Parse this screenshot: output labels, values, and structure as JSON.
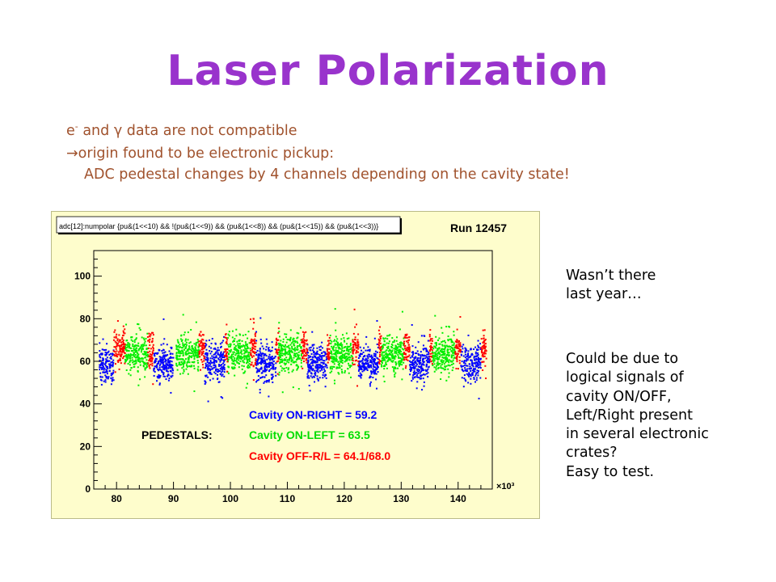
{
  "slide": {
    "title": "Laser Polarization",
    "intro": {
      "line1_electron": "e",
      "line1_electron_sup": "-",
      "line1_and": " and ",
      "line1_gamma": "γ",
      "line1_rest": " data are not compatible",
      "line2_arrow": "→",
      "line2_text": "origin found to be electronic pickup:",
      "line3": "ADC pedestal changes by 4 channels depending on the cavity state!"
    },
    "side_note_1": [
      "Wasn’t there",
      "last year…"
    ],
    "side_note_2": [
      "Could be due to",
      "logical signals of",
      "cavity ON/OFF,",
      "Left/Right present",
      "in several electronic",
      "crates?",
      "Easy to test."
    ]
  },
  "colors": {
    "title": "#9933cc",
    "intro_text": "#a0522d",
    "frame_bg": "#fefdcc",
    "red_series": "#ff0000",
    "green_series": "#00ee00",
    "blue_series": "#0000ff"
  },
  "chart_data": {
    "type": "scatter",
    "title": "adc[12]:numpolar {pu&(1<<10) && !(pu&(1<<9)) && (pu&(1<<8)) &&  (pu&(1<<15)) && (pu&(1<<3))}",
    "run_label": "Run 12457",
    "x_multiplier": "×10³",
    "xlim": [
      76,
      146
    ],
    "ylim": [
      0,
      112
    ],
    "x_ticks": [
      80,
      90,
      100,
      110,
      120,
      130,
      140
    ],
    "y_ticks": [
      0,
      20,
      40,
      60,
      80,
      100
    ],
    "legend_heading": "PEDESTALS:",
    "legend": [
      {
        "text": "Cavity ON-RIGHT = 59.2",
        "color": "#0000ff"
      },
      {
        "text": "Cavity ON-LEFT = 63.5",
        "color": "#00ee00"
      },
      {
        "text": "Cavity OFF-R/L = 64.1/68.0",
        "color": "#ff0000"
      }
    ],
    "series": [
      {
        "name": "Cavity ON-RIGHT",
        "color": "#0000ff",
        "mean": 59.2,
        "segments": [
          [
            77,
            79.5
          ],
          [
            86.5,
            90
          ],
          [
            95.5,
            99
          ],
          [
            104.5,
            108
          ],
          [
            113.5,
            117
          ],
          [
            122.5,
            126
          ],
          [
            131.5,
            135
          ],
          [
            140.5,
            144
          ]
        ]
      },
      {
        "name": "Cavity ON-LEFT",
        "color": "#00ee00",
        "mean": 63.5,
        "segments": [
          [
            81.5,
            85.5
          ],
          [
            90.5,
            94.5
          ],
          [
            99.5,
            103.5
          ],
          [
            108.5,
            112.5
          ],
          [
            117.5,
            121.5
          ],
          [
            126.5,
            130.5
          ],
          [
            135.5,
            139.5
          ]
        ]
      },
      {
        "name": "Cavity OFF-R/L",
        "color": "#ff0000",
        "mean": 66.0,
        "segments": [
          [
            79.5,
            81.5
          ],
          [
            85.5,
            86.5
          ],
          [
            94.5,
            95.5
          ],
          [
            99,
            99.5
          ],
          [
            103.5,
            104.5
          ],
          [
            108,
            108.5
          ],
          [
            112.5,
            113.5
          ],
          [
            117,
            117.5
          ],
          [
            121.5,
            122.5
          ],
          [
            126,
            126.5
          ],
          [
            130.5,
            131.5
          ],
          [
            135,
            135.5
          ],
          [
            139.5,
            140.5
          ],
          [
            144,
            145
          ]
        ]
      }
    ]
  }
}
